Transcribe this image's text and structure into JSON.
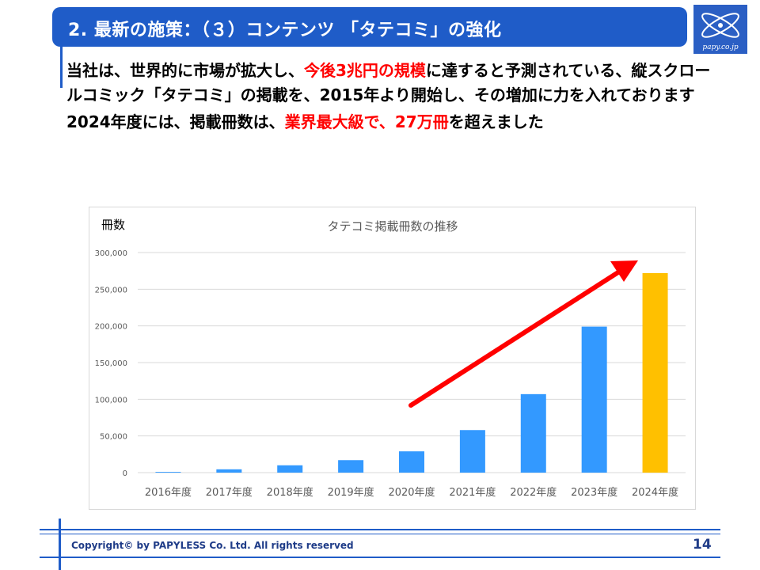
{
  "header": {
    "title": "2. 最新の施策：（３）コンテンツ 「タテコミ」の強化",
    "logo_text": "papy.co.jp"
  },
  "body": {
    "p1_a": "当社は、世界的に市場が拡大し、",
    "p1_red": "今後3兆円の規模",
    "p1_b": "に達すると予測されている、縦スクロールコミック「タテコミ」の掲載を、2015年より開始し、その増加に力を入れております",
    "p2_a": "2024年度には、掲載冊数は、",
    "p2_red": "業界最大級で、27万冊",
    "p2_b": "を超えました"
  },
  "chart_data": {
    "type": "bar",
    "title": "タテコミ掲載冊数の推移",
    "unit_label": "冊数",
    "categories": [
      "2016年度",
      "2017年度",
      "2018年度",
      "2019年度",
      "2020年度",
      "2021年度",
      "2022年度",
      "2023年度",
      "2024年度"
    ],
    "values": [
      1000,
      4500,
      10000,
      17000,
      29000,
      58000,
      107000,
      199000,
      272000
    ],
    "ylim": [
      0,
      300000
    ],
    "yticks": [
      0,
      50000,
      100000,
      150000,
      200000,
      250000,
      300000
    ],
    "ytick_labels": [
      "0",
      "50,000",
      "100,000",
      "150,000",
      "200,000",
      "250,000",
      "300,000"
    ],
    "grid": true,
    "colors": {
      "bar": "#3399ff",
      "highlight": "#ffc000",
      "arrow": "#ff0000",
      "grid": "#d9d9d9",
      "tick_text": "#595959"
    },
    "highlight_index": 8
  },
  "footer": {
    "copyright": "Copyright© by PAPYLESS Co. Ltd. All rights reserved",
    "page_number": "14"
  }
}
